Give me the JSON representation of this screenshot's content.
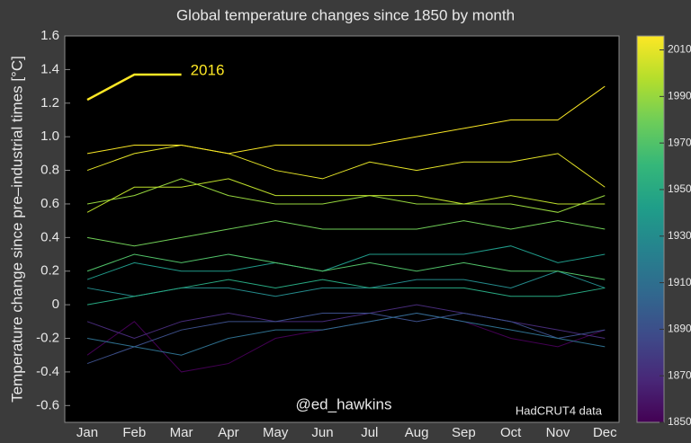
{
  "chart_data": {
    "type": "line",
    "title": "Global temperature changes since 1850 by month",
    "y_label": "Temperature change since pre–industrial times [°C]",
    "categories": [
      "Jan",
      "Feb",
      "Mar",
      "Apr",
      "May",
      "Jun",
      "Jul",
      "Aug",
      "Sep",
      "Oct",
      "Nov",
      "Dec"
    ],
    "ylim": [
      -0.7,
      1.6
    ],
    "yticks": [
      -0.6,
      -0.4,
      -0.2,
      0,
      0.2,
      0.4,
      0.6,
      0.8,
      {
        "value": 1,
        "label": "1.0"
      },
      1.2,
      1.4,
      1.6
    ],
    "colorbar": {
      "clim": [
        1850,
        2016
      ],
      "ticks": [
        1850,
        1870,
        1890,
        1910,
        1930,
        1950,
        1970,
        1990,
        2010
      ]
    },
    "annotations": [
      "@ed_hawkins",
      "HadCRUT4 data"
    ],
    "series": [
      {
        "year": 1850,
        "values": [
          -0.3,
          -0.1,
          -0.4,
          -0.35,
          -0.2,
          -0.15,
          -0.1,
          -0.05,
          -0.1,
          -0.2,
          -0.25,
          -0.15
        ]
      },
      {
        "year": 1870,
        "values": [
          -0.1,
          -0.2,
          -0.1,
          -0.05,
          -0.1,
          -0.1,
          -0.05,
          0,
          -0.05,
          -0.1,
          -0.15,
          -0.2
        ]
      },
      {
        "year": 1890,
        "values": [
          -0.35,
          -0.25,
          -0.15,
          -0.1,
          -0.1,
          -0.05,
          -0.05,
          -0.1,
          -0.05,
          -0.1,
          -0.2,
          -0.15
        ]
      },
      {
        "year": 1910,
        "values": [
          -0.2,
          -0.25,
          -0.3,
          -0.2,
          -0.15,
          -0.15,
          -0.1,
          -0.05,
          -0.1,
          -0.15,
          -0.2,
          -0.25
        ]
      },
      {
        "year": 1930,
        "values": [
          0.1,
          0.05,
          0.1,
          0.1,
          0.05,
          0.1,
          0.1,
          0.15,
          0.15,
          0.1,
          0.2,
          0.1
        ]
      },
      {
        "year": 1940,
        "values": [
          0.15,
          0.25,
          0.2,
          0.2,
          0.25,
          0.2,
          0.3,
          0.3,
          0.3,
          0.35,
          0.25,
          0.3
        ]
      },
      {
        "year": 1950,
        "values": [
          0.0,
          0.05,
          0.1,
          0.15,
          0.1,
          0.15,
          0.1,
          0.1,
          0.1,
          0.05,
          0.05,
          0.1
        ]
      },
      {
        "year": 1970,
        "values": [
          0.2,
          0.3,
          0.25,
          0.3,
          0.25,
          0.2,
          0.25,
          0.2,
          0.25,
          0.2,
          0.2,
          0.15
        ]
      },
      {
        "year": 1980,
        "values": [
          0.4,
          0.35,
          0.4,
          0.45,
          0.5,
          0.45,
          0.45,
          0.45,
          0.5,
          0.45,
          0.5,
          0.45
        ]
      },
      {
        "year": 1990,
        "values": [
          0.6,
          0.65,
          0.75,
          0.65,
          0.6,
          0.6,
          0.65,
          0.6,
          0.6,
          0.6,
          0.55,
          0.65
        ]
      },
      {
        "year": 2000,
        "values": [
          0.55,
          0.7,
          0.7,
          0.75,
          0.65,
          0.65,
          0.65,
          0.65,
          0.6,
          0.65,
          0.6,
          0.6
        ]
      },
      {
        "year": 2010,
        "values": [
          0.8,
          0.9,
          0.95,
          0.9,
          0.8,
          0.75,
          0.85,
          0.8,
          0.85,
          0.85,
          0.9,
          0.7
        ]
      },
      {
        "year": 2015,
        "values": [
          0.9,
          0.95,
          0.95,
          0.9,
          0.95,
          0.95,
          0.95,
          1.0,
          1.05,
          1.1,
          1.1,
          1.3
        ]
      },
      {
        "year": 2016,
        "values": [
          1.22,
          1.37,
          1.37,
          null,
          null,
          null,
          null,
          null,
          null,
          null,
          null,
          null
        ]
      }
    ]
  }
}
